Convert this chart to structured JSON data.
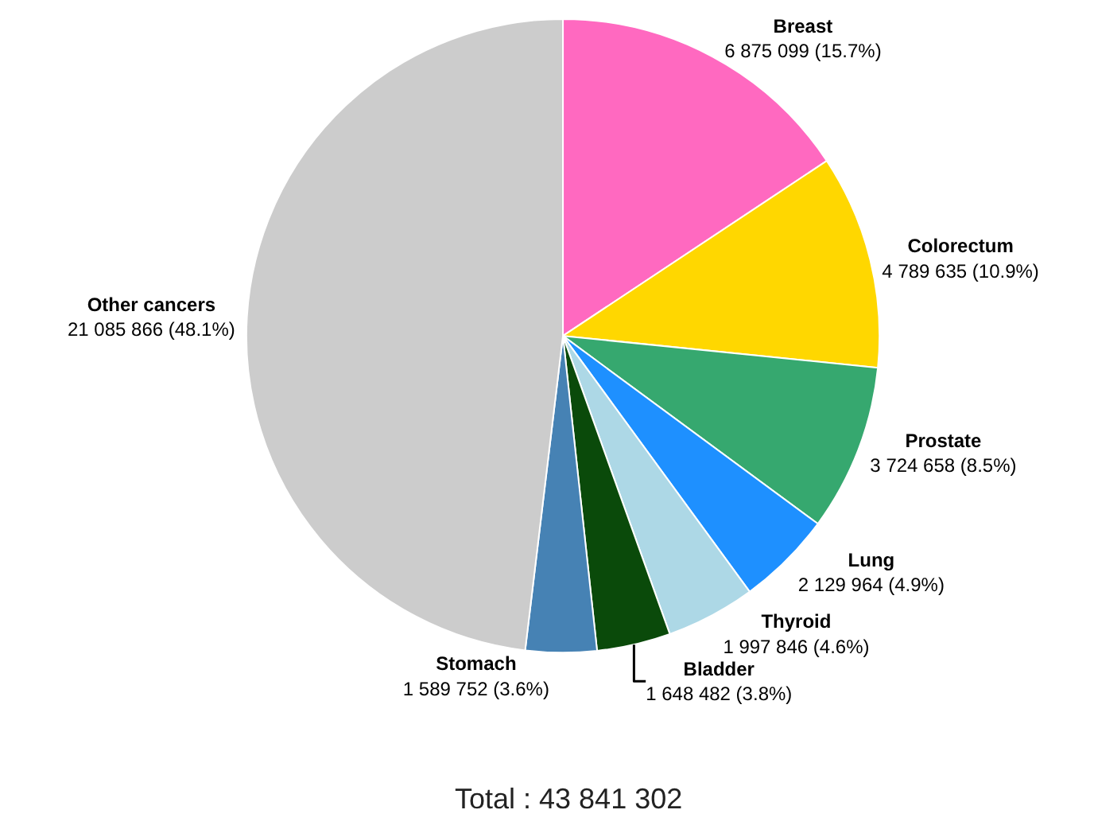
{
  "chart_data": {
    "type": "pie",
    "categories": [
      "Breast",
      "Colorectum",
      "Prostate",
      "Lung",
      "Thyroid",
      "Bladder",
      "Stomach",
      "Other cancers"
    ],
    "values": [
      6875099,
      4789635,
      3724658,
      2129964,
      1997846,
      1648482,
      1589752,
      21085866
    ],
    "value_labels": [
      "6 875 099 (15.7%)",
      "4 789 635 (10.9%)",
      "3 724 658 (8.5%)",
      "2 129 964 (4.9%)",
      "1 997 846 (4.6%)",
      "1 648 482 (3.8%)",
      "1 589 752 (3.6%)",
      "21 085 866 (48.1%)"
    ],
    "colors": [
      "#ff69c0",
      "#ffd700",
      "#36a86f",
      "#1e90ff",
      "#add8e6",
      "#0a4a0a",
      "#4682b4",
      "#cccccc"
    ],
    "annotations": [
      "Total : 43 841 302"
    ],
    "legend": false
  }
}
